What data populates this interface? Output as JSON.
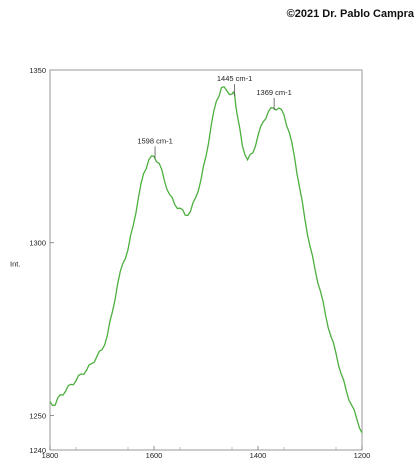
{
  "watermark": "©2021 Dr. Pablo Campra",
  "chart_data": {
    "type": "line",
    "title": "",
    "xlabel": "",
    "ylabel": "Int.",
    "xlim": [
      1800,
      1200
    ],
    "ylim": [
      1240,
      1350
    ],
    "x_ticks": [
      1800,
      1600,
      1400,
      1200
    ],
    "y_ticks": [
      1350,
      1300,
      1250,
      1240
    ],
    "grid": false,
    "line_color": "#4caf3e",
    "series": [
      {
        "x": [
          1800,
          1790,
          1780,
          1770,
          1760,
          1750,
          1740,
          1730,
          1720,
          1710,
          1700,
          1690,
          1680,
          1670,
          1660,
          1650,
          1640,
          1630,
          1620,
          1610,
          1600,
          1590,
          1580,
          1570,
          1560,
          1550,
          1540,
          1530,
          1520,
          1510,
          1500,
          1490,
          1480,
          1470,
          1460,
          1450,
          1445,
          1440,
          1430,
          1420,
          1410,
          1400,
          1390,
          1380,
          1370,
          1360,
          1350,
          1340,
          1330,
          1320,
          1310,
          1300,
          1290,
          1280,
          1270,
          1260,
          1250,
          1240,
          1230,
          1220,
          1210,
          1200
        ],
        "y": [
          1254,
          1253,
          1256,
          1257,
          1259,
          1260,
          1262,
          1263,
          1265,
          1267,
          1269,
          1273,
          1280,
          1288,
          1294,
          1298,
          1305,
          1313,
          1320,
          1324,
          1325,
          1323,
          1318,
          1314,
          1311,
          1310,
          1308,
          1309,
          1313,
          1318,
          1325,
          1334,
          1341,
          1345,
          1344,
          1343,
          1343,
          1337,
          1328,
          1324,
          1326,
          1331,
          1335,
          1338,
          1339,
          1339,
          1337,
          1332,
          1325,
          1316,
          1307,
          1299,
          1292,
          1286,
          1279,
          1273,
          1268,
          1262,
          1257,
          1253,
          1249,
          1245
        ]
      }
    ],
    "annotations": [
      {
        "label": "1598 cm-1",
        "x": 1598,
        "y": 1325
      },
      {
        "label": "1445 cm-1",
        "x": 1445,
        "y": 1343
      },
      {
        "label": "1369 cm-1",
        "x": 1369,
        "y": 1339
      }
    ]
  }
}
